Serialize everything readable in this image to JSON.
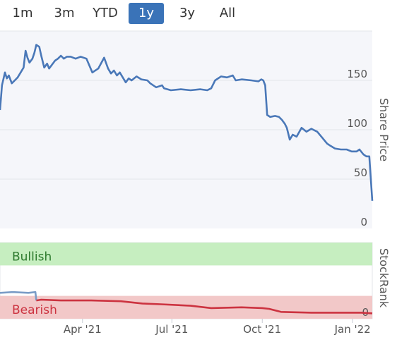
{
  "range_selector": {
    "buttons": [
      "1m",
      "3m",
      "YTD",
      "1y",
      "3y",
      "All"
    ],
    "active": "1y"
  },
  "colors": {
    "price_line": "#4a78b8",
    "price_area": "#f5f6fa",
    "rank_line_early": "#7a9cc6",
    "rank_line": "#cc3340",
    "bullish_band": "#c6eec0",
    "bullish_text": "#2e7a2e",
    "bearish_band": "#f2c8c8",
    "bearish_text": "#cc3340",
    "active_button": "#3a73b8"
  },
  "chart_data": [
    {
      "type": "line",
      "ylabel": "Share Price",
      "ylim": [
        0,
        200
      ],
      "yticks": [
        0,
        50,
        100,
        150
      ],
      "xlim": [
        "2021-01-07",
        "2022-01-21"
      ],
      "x_ticks": [
        {
          "date": "2021-04-01",
          "label": "Apr '21"
        },
        {
          "date": "2021-07-01",
          "label": "Jul '21"
        },
        {
          "date": "2021-10-01",
          "label": "Oct '21"
        },
        {
          "date": "2022-01-01",
          "label": "Jan '22"
        }
      ],
      "grid": true,
      "series": [
        {
          "x": [
            "2021-01-07",
            "2021-01-09",
            "2021-01-12",
            "2021-01-14",
            "2021-01-16",
            "2021-01-19",
            "2021-01-22",
            "2021-01-25",
            "2021-01-28",
            "2021-01-31",
            "2021-02-02",
            "2021-02-04",
            "2021-02-06",
            "2021-02-09",
            "2021-02-11",
            "2021-02-13",
            "2021-02-16",
            "2021-02-18",
            "2021-02-21",
            "2021-02-24",
            "2021-02-26",
            "2021-03-01",
            "2021-03-04",
            "2021-03-07",
            "2021-03-10",
            "2021-03-13",
            "2021-03-16",
            "2021-03-20",
            "2021-03-25",
            "2021-03-30",
            "2021-04-05",
            "2021-04-11",
            "2021-04-17",
            "2021-04-23",
            "2021-04-27",
            "2021-04-30",
            "2021-05-03",
            "2021-05-06",
            "2021-05-09",
            "2021-05-12",
            "2021-05-15",
            "2021-05-18",
            "2021-05-21",
            "2021-05-26",
            "2021-05-31",
            "2021-06-06",
            "2021-06-09",
            "2021-06-15",
            "2021-06-21",
            "2021-06-23",
            "2021-06-30",
            "2021-07-10",
            "2021-07-20",
            "2021-07-30",
            "2021-08-06",
            "2021-08-10",
            "2021-08-14",
            "2021-08-20",
            "2021-08-26",
            "2021-09-01",
            "2021-09-04",
            "2021-09-10",
            "2021-09-20",
            "2021-09-27",
            "2021-09-30",
            "2021-10-02",
            "2021-10-04",
            "2021-10-06",
            "2021-10-09",
            "2021-10-14",
            "2021-10-18",
            "2021-10-21",
            "2021-10-24",
            "2021-10-26",
            "2021-10-29",
            "2021-11-01",
            "2021-11-05",
            "2021-11-10",
            "2021-11-15",
            "2021-11-20",
            "2021-11-26",
            "2021-12-01",
            "2021-12-06",
            "2021-12-09",
            "2021-12-14",
            "2021-12-20",
            "2021-12-26",
            "2021-12-31",
            "2022-01-05",
            "2022-01-08",
            "2022-01-12",
            "2022-01-15",
            "2022-01-18",
            "2022-01-21"
          ],
          "values": [
            120,
            145,
            158,
            152,
            155,
            147,
            150,
            153,
            158,
            163,
            180,
            173,
            168,
            172,
            178,
            186,
            184,
            175,
            163,
            167,
            162,
            166,
            170,
            172,
            175,
            172,
            174,
            174,
            172,
            174,
            172,
            158,
            162,
            173,
            162,
            157,
            160,
            155,
            158,
            153,
            148,
            152,
            150,
            154,
            151,
            150,
            147,
            143,
            145,
            142,
            140,
            141,
            140,
            141,
            140,
            142,
            150,
            154,
            153,
            155,
            150,
            151,
            150,
            149,
            151,
            150,
            145,
            115,
            113,
            114,
            113,
            110,
            106,
            102,
            90,
            95,
            93,
            102,
            98,
            101,
            98,
            92,
            86,
            84,
            81,
            80,
            80,
            78,
            78,
            80,
            75,
            73,
            73,
            28
          ]
        }
      ]
    },
    {
      "type": "line",
      "ylabel": "StockRank",
      "ylim": [
        0,
        100
      ],
      "yticks": [
        0
      ],
      "bands": [
        {
          "label": "Bullish",
          "from": 70,
          "to": 100
        },
        {
          "label": "Bearish",
          "from": 0,
          "to": 30
        }
      ],
      "series": [
        {
          "x": [
            "2021-01-07",
            "2021-01-20",
            "2021-02-05",
            "2021-02-12",
            "2021-02-13",
            "2021-02-18",
            "2021-03-10",
            "2021-04-10",
            "2021-05-10",
            "2021-06-01",
            "2021-06-20",
            "2021-07-20",
            "2021-08-10",
            "2021-09-10",
            "2021-10-01",
            "2021-10-08",
            "2021-10-20",
            "2021-11-20",
            "2021-12-20",
            "2022-01-10",
            "2022-01-21"
          ],
          "values": [
            34,
            35,
            34,
            35,
            24,
            25,
            24,
            24,
            23,
            20,
            19,
            17,
            14,
            15,
            14,
            13,
            9,
            8,
            8,
            8,
            7
          ]
        }
      ]
    }
  ]
}
